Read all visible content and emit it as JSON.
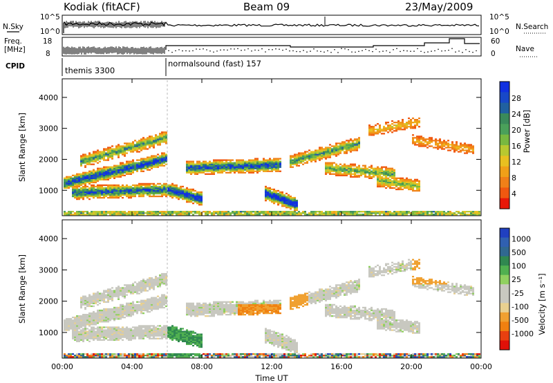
{
  "header": {
    "station": "Kodiak (fitACF)",
    "beam": "Beam 09",
    "date": "23/May/2009"
  },
  "sky_panel": {
    "left_label": "N.Sky",
    "right_label": "N.Search",
    "left_ticks": [
      "10^5",
      "10^0"
    ],
    "right_ticks": [
      "10^5",
      "10^0"
    ]
  },
  "freq_panel": {
    "left_label_1": "Freq.",
    "left_label_2": "[MHz]",
    "left_ticks": [
      "18",
      "8"
    ],
    "right_label": "Nave",
    "right_ticks": [
      "60",
      "0"
    ]
  },
  "cpid_panel": {
    "label": "CPID",
    "segments": [
      "themis 3300",
      "normalsound (fast) 157"
    ]
  },
  "chart_data": [
    {
      "type": "heatmap",
      "title": "",
      "quantity": "Power",
      "xlabel": "",
      "ylabel": "Slant Range [km]",
      "x_ticks": [
        "00:00",
        "04:00",
        "08:00",
        "12:00",
        "16:00",
        "20:00",
        "00:00"
      ],
      "x_range_hours": [
        0,
        24
      ],
      "y_ticks": [
        "1000",
        "2000",
        "3000",
        "4000"
      ],
      "ylim": [
        180,
        4600
      ],
      "colorbar": {
        "label": "Power [dB]",
        "ticks": [
          "4",
          "8",
          "12",
          "16",
          "20",
          "24",
          "28"
        ],
        "colors": [
          "#1030e0",
          "#1848c8",
          "#2060a0",
          "#3a8a5a",
          "#4aa05a",
          "#78b840",
          "#b8c830",
          "#e8c020",
          "#f0a018",
          "#f08018",
          "#f05810",
          "#e81808"
        ]
      }
    },
    {
      "type": "heatmap",
      "title": "",
      "quantity": "Velocity",
      "xlabel": "Time UT",
      "ylabel": "Slant Range [km]",
      "x_ticks": [
        "00:00",
        "04:00",
        "08:00",
        "12:00",
        "16:00",
        "20:00",
        "00:00"
      ],
      "x_range_hours": [
        0,
        24
      ],
      "y_ticks": [
        "1000",
        "2000",
        "3000",
        "4000"
      ],
      "ylim": [
        180,
        4600
      ],
      "colorbar": {
        "label": "Velocity [m s⁻¹]",
        "ticks": [
          "1000",
          "500",
          "100",
          "25",
          "-25",
          "-100",
          "-500",
          "-1000"
        ],
        "colors": [
          "#2040c0",
          "#3060b0",
          "#306890",
          "#308850",
          "#50b050",
          "#90d060",
          "#c8c8c0",
          "#c8c8c0",
          "#e8d090",
          "#f0a030",
          "#f08010",
          "#e84010",
          "#e01008"
        ]
      }
    }
  ]
}
